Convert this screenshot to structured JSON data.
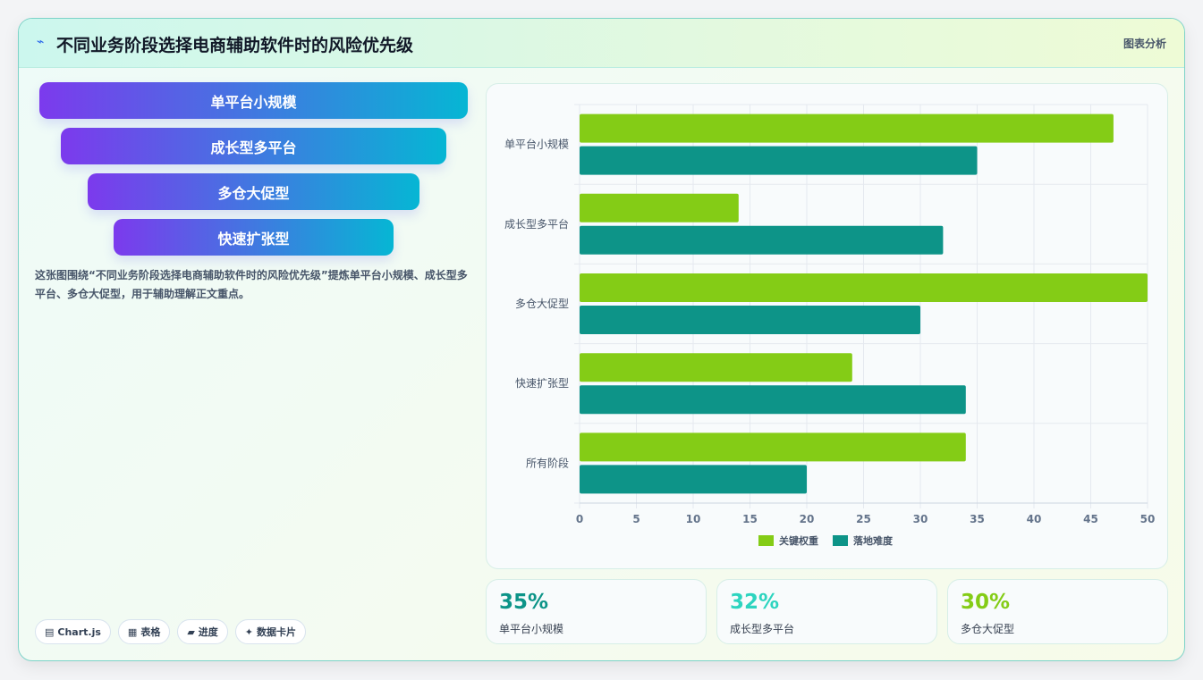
{
  "header": {
    "title_icon": "sparkline-icon",
    "title": "不同业务阶段选择电商辅助软件时的风险优先级",
    "tag": "图表分析"
  },
  "funnel": {
    "items": [
      {
        "label": "单平台小规模"
      },
      {
        "label": "成长型多平台"
      },
      {
        "label": "多仓大促型"
      },
      {
        "label": "快速扩张型"
      }
    ]
  },
  "description": "这张图围绕“不同业务阶段选择电商辅助软件时的风险优先级”提炼单平台小规模、成长型多平台、多仓大促型，用于辅助理解正文重点。",
  "chips": [
    {
      "icon": "chart-icon",
      "glyph": "▤",
      "label": "Chart.js"
    },
    {
      "icon": "table-icon",
      "glyph": "▦",
      "label": "表格"
    },
    {
      "icon": "progress-icon",
      "glyph": "▰",
      "label": "进度"
    },
    {
      "icon": "card-icon",
      "glyph": "✦",
      "label": "数据卡片"
    }
  ],
  "stats": [
    {
      "value": "35%",
      "label": "单平台小规模",
      "color": "#0d9488"
    },
    {
      "value": "32%",
      "label": "成长型多平台",
      "color": "#2dd4bf"
    },
    {
      "value": "30%",
      "label": "多仓大促型",
      "color": "#84cc16"
    }
  ],
  "chart_data": {
    "type": "bar",
    "orientation": "horizontal",
    "categories": [
      "单平台小规模",
      "成长型多平台",
      "多仓大促型",
      "快速扩张型",
      "所有阶段"
    ],
    "series": [
      {
        "name": "关键权重",
        "values": [
          47,
          14,
          50,
          24,
          34
        ],
        "color": "#84cc16"
      },
      {
        "name": "落地难度",
        "values": [
          35,
          32,
          30,
          34,
          20
        ],
        "color": "#0d9488"
      }
    ],
    "xlim": [
      0,
      50
    ],
    "x_ticks": [
      0,
      5,
      10,
      15,
      20,
      25,
      30,
      35,
      40,
      45,
      50
    ],
    "grid": true,
    "legend_position": "bottom"
  }
}
